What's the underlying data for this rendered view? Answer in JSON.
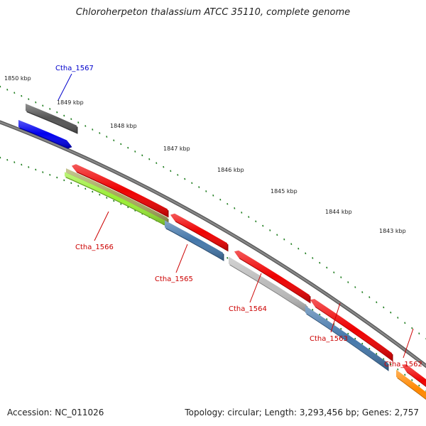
{
  "title": "Chloroherpeton thalassium ATCC 35110, complete genome",
  "footer": {
    "accession": "Accession: NC_011026",
    "summary": "Topology: circular; Length: 3,293,456 bp; Genes: 2,757"
  },
  "colors": {
    "tick": "#1e7d1e",
    "backbone": "#888888",
    "label_forward": "#0000cc",
    "label_reverse": "#cc0000"
  },
  "ticks": [
    {
      "label": "1850 kbp"
    },
    {
      "label": "1849 kbp"
    },
    {
      "label": "1848 kbp"
    },
    {
      "label": "1847 kbp"
    },
    {
      "label": "1846 kbp"
    },
    {
      "label": "1845 kbp"
    },
    {
      "label": "1844 kbp"
    },
    {
      "label": "1843 kbp"
    }
  ],
  "genes": [
    {
      "name": "Ctha_1567",
      "strand": "+",
      "color": "#0000ee"
    },
    {
      "name": "Ctha_1566",
      "strand": "-",
      "color": "#ee0000"
    },
    {
      "name": "Ctha_1565",
      "strand": "-",
      "color": "#ee0000"
    },
    {
      "name": "Ctha_1564",
      "strand": "-",
      "color": "#ee0000"
    },
    {
      "name": "Ctha_1563",
      "strand": "-",
      "color": "#ee0000"
    },
    {
      "name": "Ctha_1562",
      "strand": "-",
      "color": "#ee0000"
    }
  ],
  "features": [
    {
      "name": "forward-gray-feature",
      "color": "#555555"
    },
    {
      "name": "olive-feature",
      "color": "#a8a85c"
    },
    {
      "name": "lime-feature",
      "color": "#99ee33"
    },
    {
      "name": "steelblue-feature",
      "color": "#4477aa"
    },
    {
      "name": "silver-feature",
      "color": "#bbbbbb"
    },
    {
      "name": "steelblue-feature",
      "color": "#4477aa"
    },
    {
      "name": "orange-feature",
      "color": "#ff8800"
    }
  ]
}
